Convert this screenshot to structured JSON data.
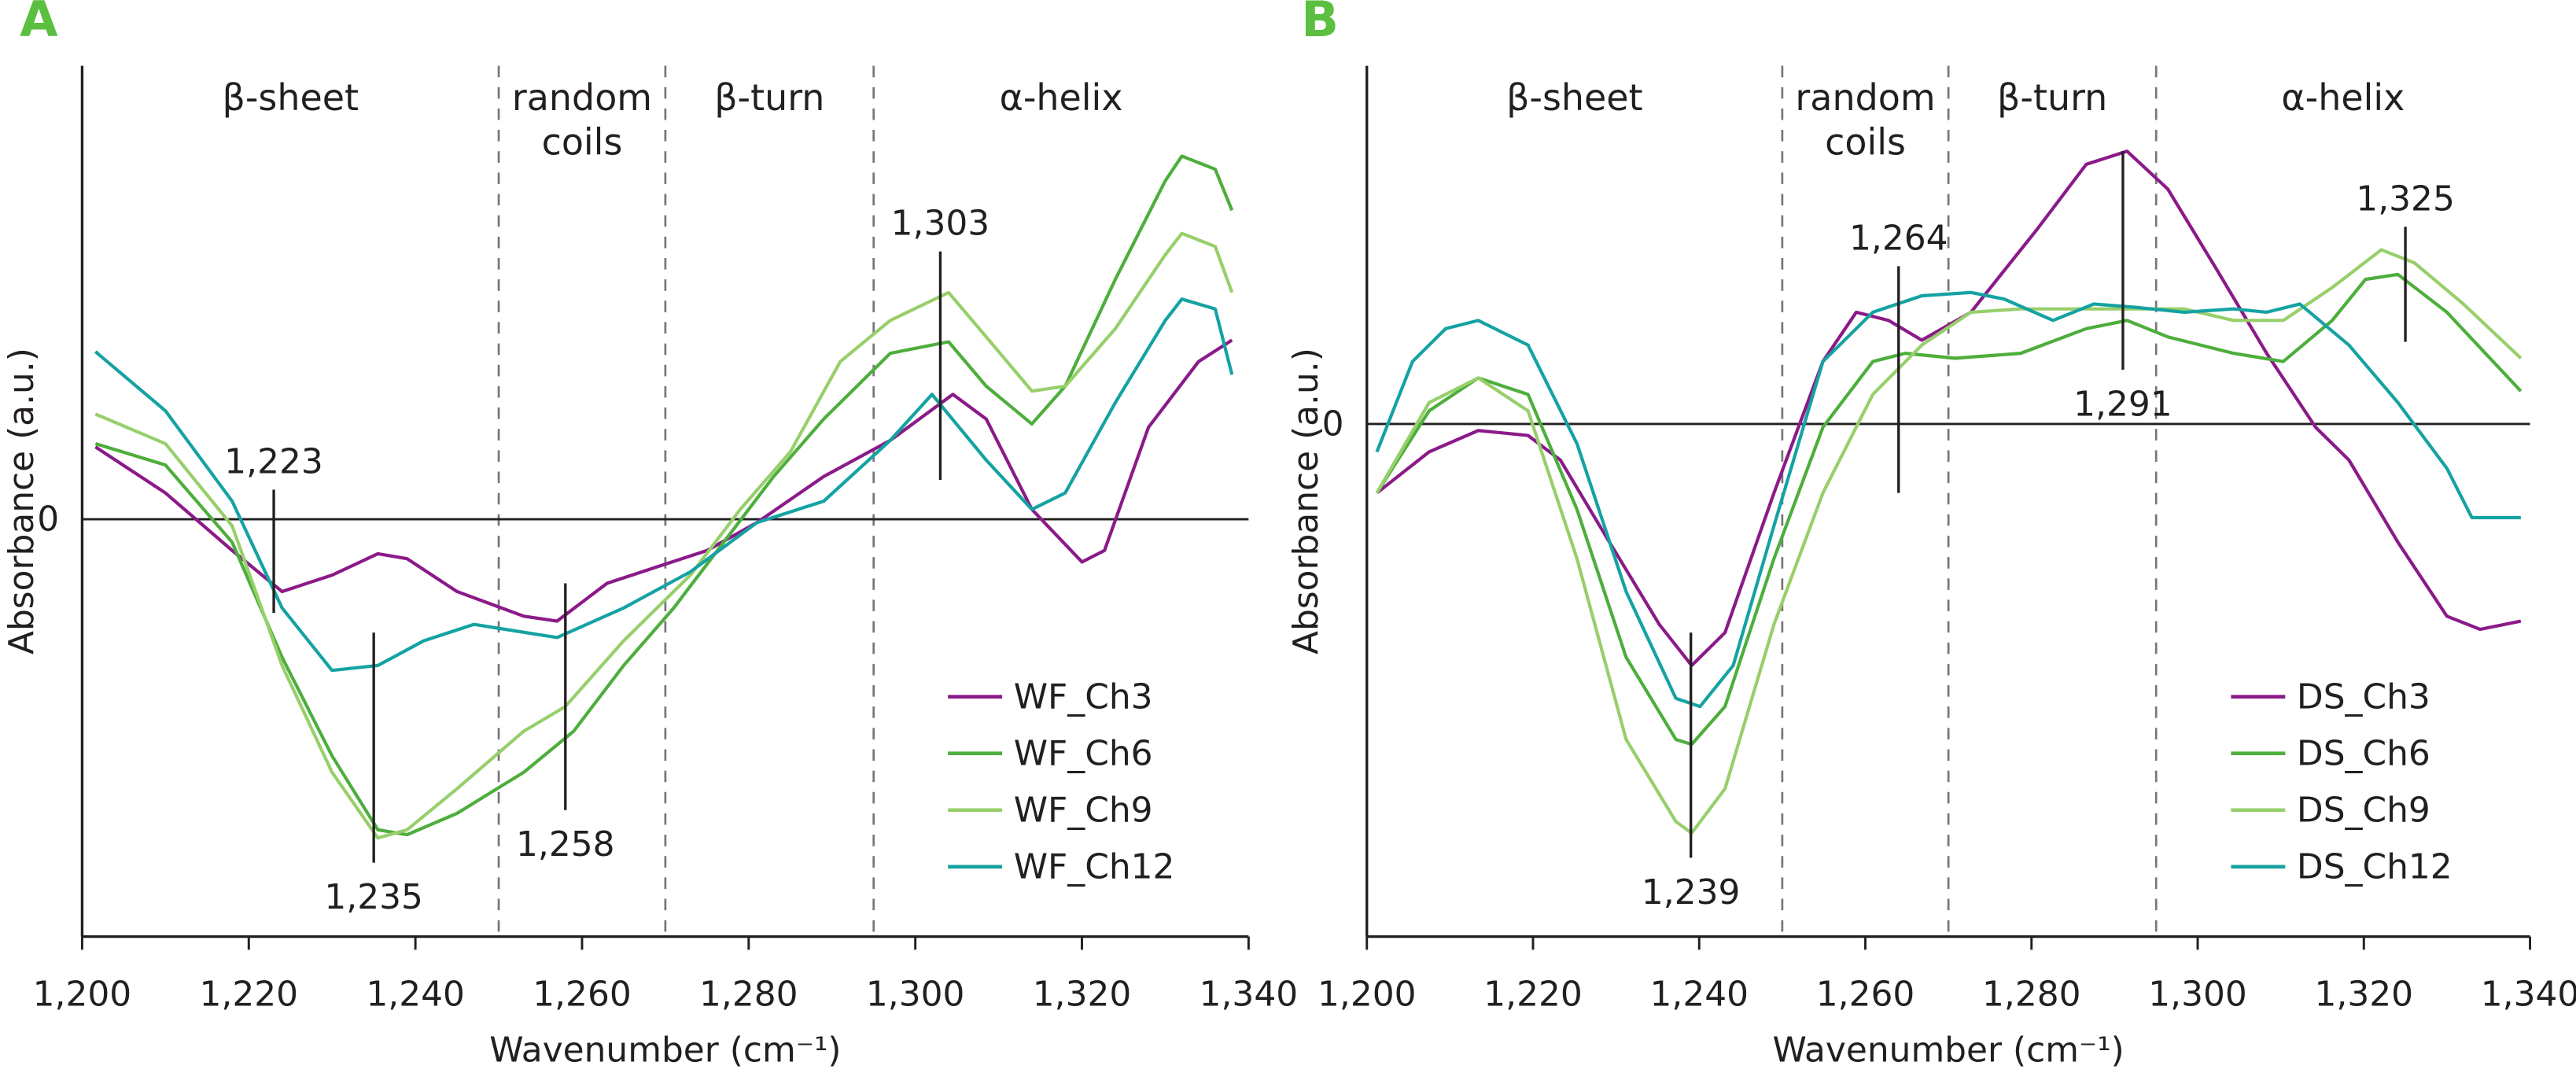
{
  "chart_data": [
    {
      "type": "line",
      "panel_label": "A",
      "xlabel": "Wavenumber (cm⁻¹)",
      "ylabel": "Absorbance (a.u.)",
      "xlim": [
        1200,
        1340
      ],
      "ylim": [
        -2.54,
        2.76
      ],
      "xticks": [
        1200,
        1220,
        1240,
        1260,
        1280,
        1300,
        1320,
        1340
      ],
      "xtick_labels": [
        "1,200",
        "1,220",
        "1,240",
        "1,260",
        "1,280",
        "1,300",
        "1,320",
        "1,340"
      ],
      "ytick_labels": [
        "0"
      ],
      "zero_line": true,
      "grid": false,
      "legend_position": "bottom-right",
      "regions": [
        {
          "label": [
            "β-sheet"
          ],
          "from": 1200,
          "to": 1250
        },
        {
          "label": [
            "random",
            "coils"
          ],
          "from": 1250,
          "to": 1270
        },
        {
          "label": [
            "β-turn"
          ],
          "from": 1270,
          "to": 1295
        },
        {
          "label": [
            "α-helix"
          ],
          "from": 1295,
          "to": 1340
        }
      ],
      "dividers": [
        1250,
        1270,
        1295
      ],
      "peak_markers": [
        {
          "x": 1223,
          "label": "1,223",
          "y_from": 0.18,
          "y_to": -0.57,
          "label_pos": "above"
        },
        {
          "x": 1235,
          "label": "1,235",
          "y_from": -0.69,
          "y_to": -2.09,
          "label_pos": "below"
        },
        {
          "x": 1258,
          "label": "1,258",
          "y_from": -0.39,
          "y_to": -1.77,
          "label_pos": "below"
        },
        {
          "x": 1303,
          "label": "1,303",
          "y_from": 1.63,
          "y_to": 0.24,
          "label_pos": "above"
        }
      ],
      "series": [
        {
          "name": "WF_Ch3",
          "color": "#8b1a89",
          "x": [
            1201.6,
            1210,
            1218,
            1224,
            1230,
            1235.5,
            1239,
            1245,
            1253,
            1257,
            1263,
            1269,
            1275,
            1281,
            1289,
            1297,
            1304.5,
            1308.5,
            1314,
            1320,
            1322.7,
            1328,
            1334,
            1338
          ],
          "y": [
            0.44,
            0.16,
            -0.19,
            -0.44,
            -0.34,
            -0.21,
            -0.24,
            -0.44,
            -0.59,
            -0.62,
            -0.39,
            -0.29,
            -0.19,
            -0.02,
            0.26,
            0.48,
            0.76,
            0.61,
            0.06,
            -0.26,
            -0.19,
            0.56,
            0.96,
            1.09
          ]
        },
        {
          "name": "WF_Ch6",
          "color": "#4dae3c",
          "x": [
            1201.6,
            1210,
            1218,
            1224,
            1230,
            1235.5,
            1239,
            1245,
            1253,
            1259,
            1265,
            1271,
            1277,
            1283,
            1289,
            1297,
            1304,
            1308.5,
            1314,
            1318,
            1324,
            1330,
            1332,
            1336,
            1338
          ],
          "y": [
            0.46,
            0.33,
            -0.14,
            -0.84,
            -1.44,
            -1.89,
            -1.92,
            -1.79,
            -1.54,
            -1.29,
            -0.89,
            -0.54,
            -0.14,
            0.26,
            0.61,
            1.01,
            1.08,
            0.81,
            0.58,
            0.81,
            1.46,
            2.06,
            2.21,
            2.13,
            1.88
          ]
        },
        {
          "name": "WF_Ch9",
          "color": "#97cf6b",
          "x": [
            1201.6,
            1210,
            1218,
            1224,
            1230,
            1235.5,
            1239,
            1245,
            1253,
            1258,
            1265,
            1273,
            1279,
            1285,
            1291,
            1297,
            1304,
            1308.5,
            1314,
            1318,
            1324,
            1330,
            1332,
            1336,
            1338
          ],
          "y": [
            0.64,
            0.46,
            -0.04,
            -0.89,
            -1.54,
            -1.94,
            -1.89,
            -1.64,
            -1.29,
            -1.14,
            -0.74,
            -0.34,
            0.06,
            0.41,
            0.96,
            1.21,
            1.38,
            1.11,
            0.78,
            0.81,
            1.16,
            1.61,
            1.74,
            1.66,
            1.38
          ]
        },
        {
          "name": "WF_Ch12",
          "color": "#15a2a2",
          "x": [
            1201.6,
            1210,
            1218,
            1224,
            1230,
            1235.5,
            1241,
            1247,
            1257,
            1265,
            1273,
            1281,
            1289,
            1297,
            1302,
            1308.5,
            1314,
            1318,
            1324,
            1330,
            1332,
            1336,
            1338
          ],
          "y": [
            1.02,
            0.66,
            0.11,
            -0.54,
            -0.92,
            -0.89,
            -0.74,
            -0.64,
            -0.72,
            -0.54,
            -0.32,
            -0.02,
            0.11,
            0.48,
            0.76,
            0.36,
            0.06,
            0.16,
            0.71,
            1.21,
            1.34,
            1.28,
            0.88
          ]
        }
      ]
    },
    {
      "type": "line",
      "panel_label": "B",
      "xlabel": "Wavenumber (cm⁻¹)",
      "ylabel": "Absorbance (a.u.)",
      "xlim": [
        1200,
        1340
      ],
      "ylim": [
        -3.12,
        2.18
      ],
      "xticks": [
        1200,
        1220,
        1240,
        1260,
        1280,
        1300,
        1320,
        1340
      ],
      "xtick_labels": [
        "1,200",
        "1,220",
        "1,240",
        "1,260",
        "1,280",
        "1,300",
        "1,320",
        "1,340"
      ],
      "ytick_labels": [
        "0"
      ],
      "zero_line": true,
      "grid": false,
      "legend_position": "bottom-right",
      "regions": [
        {
          "label": [
            "β-sheet"
          ],
          "from": 1200,
          "to": 1250
        },
        {
          "label": [
            "random",
            "coils"
          ],
          "from": 1250,
          "to": 1270
        },
        {
          "label": [
            "β-turn"
          ],
          "from": 1270,
          "to": 1295
        },
        {
          "label": [
            "α-helix"
          ],
          "from": 1295,
          "to": 1340
        }
      ],
      "dividers": [
        1250,
        1270,
        1295
      ],
      "peak_markers": [
        {
          "x": 1239,
          "label": "1,239",
          "y_from": -1.27,
          "y_to": -2.64,
          "label_pos": "below"
        },
        {
          "x": 1264,
          "label": "1,264",
          "y_from": 0.96,
          "y_to": -0.42,
          "label_pos": "above"
        },
        {
          "x": 1291,
          "label": "1,291",
          "y_from": 1.66,
          "y_to": 0.33,
          "label_pos": "below"
        },
        {
          "x": 1325,
          "label": "1,325",
          "y_from": 1.2,
          "y_to": 0.5,
          "label_pos": "above"
        }
      ],
      "series": [
        {
          "name": "DS_Ch3",
          "color": "#8b1a89",
          "x": [
            1201.2,
            1207.5,
            1213.4,
            1219.4,
            1223.3,
            1229.2,
            1235.2,
            1239.1,
            1243.1,
            1249,
            1254.9,
            1258.9,
            1262.8,
            1266.8,
            1272.7,
            1280.6,
            1286.6,
            1291.5,
            1296.4,
            1302.4,
            1308.3,
            1314.2,
            1318.2,
            1324.1,
            1330,
            1334,
            1338.9
          ],
          "y": [
            -0.42,
            -0.17,
            -0.04,
            -0.07,
            -0.22,
            -0.72,
            -1.22,
            -1.47,
            -1.27,
            -0.42,
            0.38,
            0.68,
            0.63,
            0.51,
            0.68,
            1.18,
            1.58,
            1.66,
            1.43,
            0.93,
            0.43,
            -0.02,
            -0.22,
            -0.72,
            -1.17,
            -1.25,
            -1.2
          ]
        },
        {
          "name": "DS_Ch6",
          "color": "#4dae3c",
          "x": [
            1201.2,
            1207.5,
            1213.4,
            1219.4,
            1225.3,
            1231.2,
            1237.2,
            1239.1,
            1243.1,
            1249,
            1254.9,
            1260.9,
            1264.8,
            1270.8,
            1278.7,
            1286.6,
            1291.5,
            1296.4,
            1304.3,
            1310.3,
            1316.2,
            1320.2,
            1324.1,
            1330,
            1338.9
          ],
          "y": [
            -0.42,
            0.08,
            0.28,
            0.18,
            -0.52,
            -1.42,
            -1.92,
            -1.95,
            -1.72,
            -0.82,
            -0.02,
            0.38,
            0.43,
            0.4,
            0.43,
            0.58,
            0.63,
            0.53,
            0.43,
            0.38,
            0.63,
            0.88,
            0.91,
            0.68,
            0.2
          ]
        },
        {
          "name": "DS_Ch9",
          "color": "#97cf6b",
          "x": [
            1201.2,
            1207.5,
            1213.4,
            1219.4,
            1225.3,
            1231.2,
            1237.2,
            1239.1,
            1243.1,
            1249,
            1254.9,
            1260.9,
            1266.8,
            1272.7,
            1278.7,
            1286.6,
            1291.5,
            1298.4,
            1304.3,
            1310.3,
            1316.2,
            1322.1,
            1326.1,
            1332,
            1338.9
          ],
          "y": [
            -0.42,
            0.13,
            0.28,
            0.08,
            -0.82,
            -1.92,
            -2.42,
            -2.49,
            -2.22,
            -1.22,
            -0.42,
            0.18,
            0.48,
            0.68,
            0.7,
            0.7,
            0.7,
            0.7,
            0.63,
            0.63,
            0.83,
            1.06,
            0.98,
            0.73,
            0.4
          ]
        },
        {
          "name": "DS_Ch12",
          "color": "#15a2a2",
          "x": [
            1201.2,
            1205.5,
            1209.5,
            1213.4,
            1219.4,
            1225.3,
            1231.2,
            1237.2,
            1240.1,
            1244.1,
            1249,
            1254.9,
            1260.9,
            1266.8,
            1272.7,
            1276.7,
            1282.6,
            1287.5,
            1292.5,
            1298.4,
            1304.3,
            1308.3,
            1312.3,
            1318.2,
            1324.1,
            1330,
            1333,
            1338.9
          ],
          "y": [
            -0.17,
            0.38,
            0.58,
            0.63,
            0.48,
            -0.12,
            -1.02,
            -1.67,
            -1.72,
            -1.47,
            -0.62,
            0.38,
            0.68,
            0.78,
            0.8,
            0.76,
            0.63,
            0.73,
            0.71,
            0.68,
            0.7,
            0.68,
            0.73,
            0.48,
            0.13,
            -0.27,
            -0.57,
            -0.57
          ]
        }
      ]
    }
  ]
}
